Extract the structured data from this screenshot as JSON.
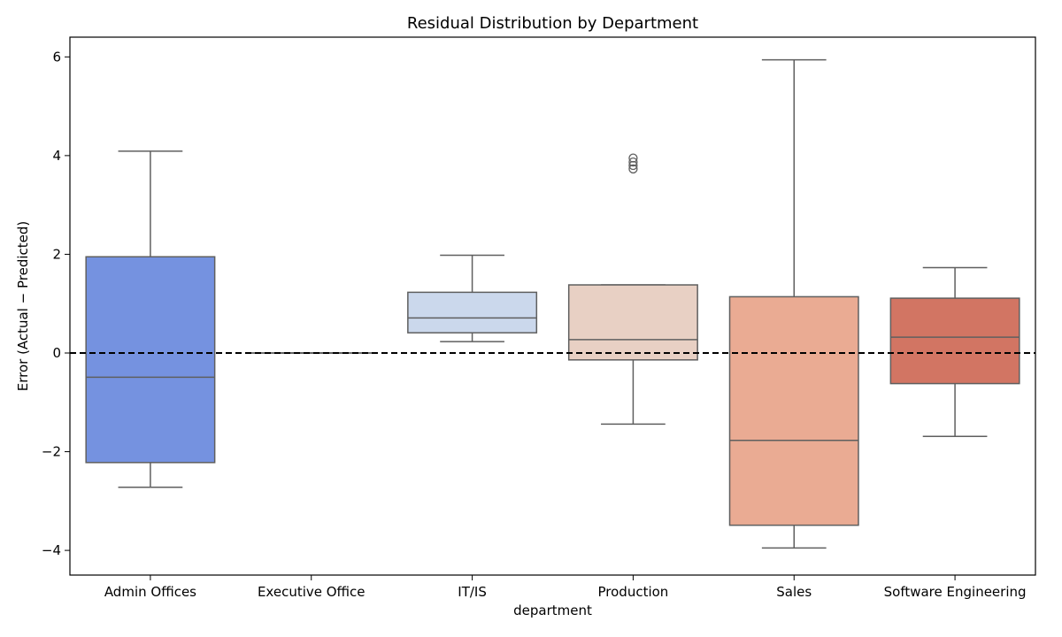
{
  "chart_data": {
    "type": "box",
    "title": "Residual Distribution by Department",
    "xlabel": "department",
    "ylabel": "Error (Actual − Predicted)",
    "ylim": [
      -4.5,
      6.4
    ],
    "yticks": [
      -4,
      -2,
      0,
      2,
      4,
      6
    ],
    "ytick_labels": [
      "−4",
      "−2",
      "0",
      "2",
      "4",
      "6"
    ],
    "reference_line": {
      "y": 0,
      "style": "dashed",
      "color": "#000000"
    },
    "grid": false,
    "categories": [
      "Admin Offices",
      "Executive Office",
      "IT/IS",
      "Production",
      "Sales",
      "Software Engineering"
    ],
    "boxes": [
      {
        "category": "Admin Offices",
        "whisker_low": -2.72,
        "q1": -2.22,
        "median": -0.49,
        "q3": 1.95,
        "whisker_high": 4.09,
        "outliers": [],
        "color": "#7592e0"
      },
      {
        "category": "Executive Office",
        "whisker_low": 0.0,
        "q1": 0.0,
        "median": 0.0,
        "q3": 0.0,
        "whisker_high": 0.0,
        "outliers": [],
        "color": "#a9bff0"
      },
      {
        "category": "IT/IS",
        "whisker_low": 0.23,
        "q1": 0.41,
        "median": 0.71,
        "q3": 1.23,
        "whisker_high": 1.98,
        "outliers": [],
        "color": "#cbd8ec"
      },
      {
        "category": "Production",
        "whisker_low": -1.44,
        "q1": -0.14,
        "median": 0.27,
        "q3": 1.38,
        "whisker_high": 1.38,
        "outliers": [
          3.73,
          3.8,
          3.87,
          3.95
        ],
        "color": "#e8d0c4"
      },
      {
        "category": "Sales",
        "whisker_low": -3.95,
        "q1": -3.49,
        "median": -1.77,
        "q3": 1.14,
        "whisker_high": 5.94,
        "outliers": [],
        "color": "#eaab93"
      },
      {
        "category": "Software Engineering",
        "whisker_low": -1.69,
        "q1": -0.62,
        "median": 0.32,
        "q3": 1.11,
        "whisker_high": 1.73,
        "outliers": [],
        "color": "#d27563"
      }
    ]
  }
}
